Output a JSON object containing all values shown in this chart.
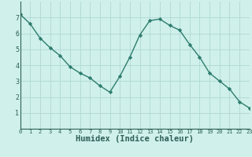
{
  "x": [
    0,
    1,
    2,
    3,
    4,
    5,
    6,
    7,
    8,
    9,
    10,
    11,
    12,
    13,
    14,
    15,
    16,
    17,
    18,
    19,
    20,
    21,
    22,
    23
  ],
  "y": [
    7.2,
    6.6,
    5.7,
    5.1,
    4.6,
    3.9,
    3.5,
    3.2,
    2.7,
    2.3,
    3.3,
    4.5,
    5.9,
    6.8,
    6.9,
    6.5,
    6.2,
    5.3,
    4.5,
    3.5,
    3.0,
    2.5,
    1.7,
    1.3
  ],
  "line_color": "#2e7d6e",
  "marker": "D",
  "marker_size": 2.2,
  "bg_color": "#cff0eb",
  "grid_color": "#b0d9d3",
  "xlabel": "Humidex (Indice chaleur)",
  "xlabel_color": "#2e5f58",
  "xlabel_fontsize": 7.5,
  "tick_color": "#2e5f58",
  "xlim": [
    0,
    23
  ],
  "ylim": [
    0,
    8
  ],
  "yticks": [
    1,
    2,
    3,
    4,
    5,
    6,
    7
  ],
  "xticks": [
    0,
    1,
    2,
    3,
    4,
    5,
    6,
    7,
    8,
    9,
    10,
    11,
    12,
    13,
    14,
    15,
    16,
    17,
    18,
    19,
    20,
    21,
    22,
    23
  ],
  "line_width": 1.0,
  "axis_color": "#2e5f58",
  "spine_color": "#2e5f58"
}
